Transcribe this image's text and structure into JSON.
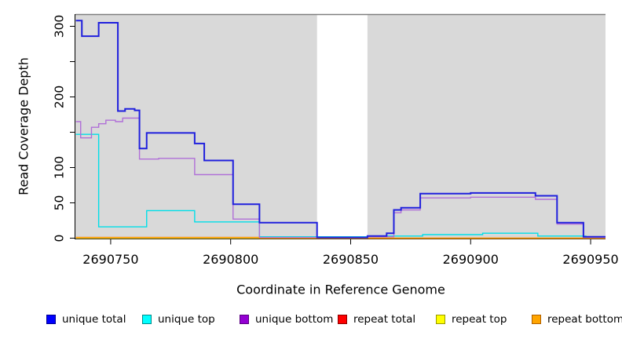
{
  "figure": {
    "x_axis_label": "Coordinate in Reference Genome",
    "y_axis_label": "Read Coverage Depth"
  },
  "chart_data": {
    "type": "line",
    "subtype": "step-after",
    "title": "",
    "xlabel": "Coordinate in Reference Genome",
    "ylabel": "Read Coverage Depth",
    "xlim": [
      2690735.3,
      2690956.2
    ],
    "ylim": [
      0,
      318
    ],
    "x_ticks": [
      2690750,
      2690800,
      2690850,
      2690900,
      2690950
    ],
    "y_ticks_labeled": [
      0,
      50,
      100,
      200,
      300
    ],
    "y_ticks_unlabeled": [
      150,
      250
    ],
    "grid": false,
    "panel_bg": "#d9d9d9",
    "panel_border_top": "#7f7f7f",
    "gap_band": {
      "x_start": 2690836,
      "x_end": 2690857,
      "color": "#ffffff"
    },
    "legend_position": "bottom",
    "series": [
      {
        "name": "repeat top",
        "color": "#f0e030",
        "points": [
          [
            2690735.5,
            0
          ],
          [
            2690956,
            0
          ]
        ]
      },
      {
        "name": "repeat total",
        "color": "#d5607f",
        "points": [
          [
            2690735.5,
            1
          ],
          [
            2690812,
            1
          ],
          [
            2690836,
            0
          ],
          [
            2690956,
            0
          ]
        ]
      },
      {
        "name": "repeat bottom",
        "color": "#ff9d00",
        "points": [
          [
            2690735.5,
            1
          ],
          [
            2690812,
            0
          ],
          [
            2690956,
            0
          ]
        ]
      },
      {
        "name": "unique top",
        "color": "#00dfe8",
        "points": [
          [
            2690735.5,
            147
          ],
          [
            2690745,
            16
          ],
          [
            2690765,
            39
          ],
          [
            2690785,
            23
          ],
          [
            2690812,
            2
          ],
          [
            2690857,
            3
          ],
          [
            2690880,
            5
          ],
          [
            2690905,
            7
          ],
          [
            2690928,
            3
          ],
          [
            2690948,
            2
          ],
          [
            2690956,
            2
          ]
        ]
      },
      {
        "name": "unique bottom",
        "color": "#b06fd8",
        "points": [
          [
            2690735.5,
            165
          ],
          [
            2690737.5,
            142
          ],
          [
            2690742,
            157
          ],
          [
            2690745,
            162
          ],
          [
            2690748,
            167
          ],
          [
            2690752,
            165
          ],
          [
            2690755,
            170
          ],
          [
            2690762,
            112
          ],
          [
            2690770,
            113
          ],
          [
            2690785,
            90
          ],
          [
            2690801,
            27
          ],
          [
            2690812,
            1
          ],
          [
            2690857,
            2
          ],
          [
            2690868,
            36
          ],
          [
            2690871,
            40
          ],
          [
            2690879,
            57
          ],
          [
            2690900,
            58
          ],
          [
            2690927,
            55
          ],
          [
            2690936,
            20
          ],
          [
            2690947,
            1
          ],
          [
            2690956,
            1
          ]
        ]
      },
      {
        "name": "unique total",
        "color": "#2020dd",
        "points": [
          [
            2690735.5,
            308
          ],
          [
            2690738,
            286
          ],
          [
            2690745,
            305
          ],
          [
            2690753,
            180
          ],
          [
            2690756,
            183
          ],
          [
            2690760,
            181
          ],
          [
            2690762,
            127
          ],
          [
            2690765,
            149
          ],
          [
            2690785,
            134
          ],
          [
            2690789,
            110
          ],
          [
            2690801,
            48
          ],
          [
            2690812,
            22
          ],
          [
            2690836,
            1
          ],
          [
            2690857,
            3
          ],
          [
            2690865,
            7
          ],
          [
            2690868,
            40
          ],
          [
            2690871,
            43
          ],
          [
            2690879,
            63
          ],
          [
            2690900,
            64
          ],
          [
            2690927,
            60
          ],
          [
            2690936,
            22
          ],
          [
            2690947,
            2
          ],
          [
            2690956,
            2
          ]
        ]
      }
    ]
  },
  "legend": {
    "items": [
      {
        "label": "unique total",
        "fill": "#0000ff",
        "border": "#000090"
      },
      {
        "label": "unique top",
        "fill": "#00ffff",
        "border": "#008b8b"
      },
      {
        "label": "unique bottom",
        "fill": "#9400d3",
        "border": "#5a0080"
      },
      {
        "label": "repeat total",
        "fill": "#ff0000",
        "border": "#8b0000"
      },
      {
        "label": "repeat top",
        "fill": "#ffff00",
        "border": "#9a9a00"
      },
      {
        "label": "repeat bottom",
        "fill": "#ffa500",
        "border": "#b06000"
      }
    ]
  }
}
